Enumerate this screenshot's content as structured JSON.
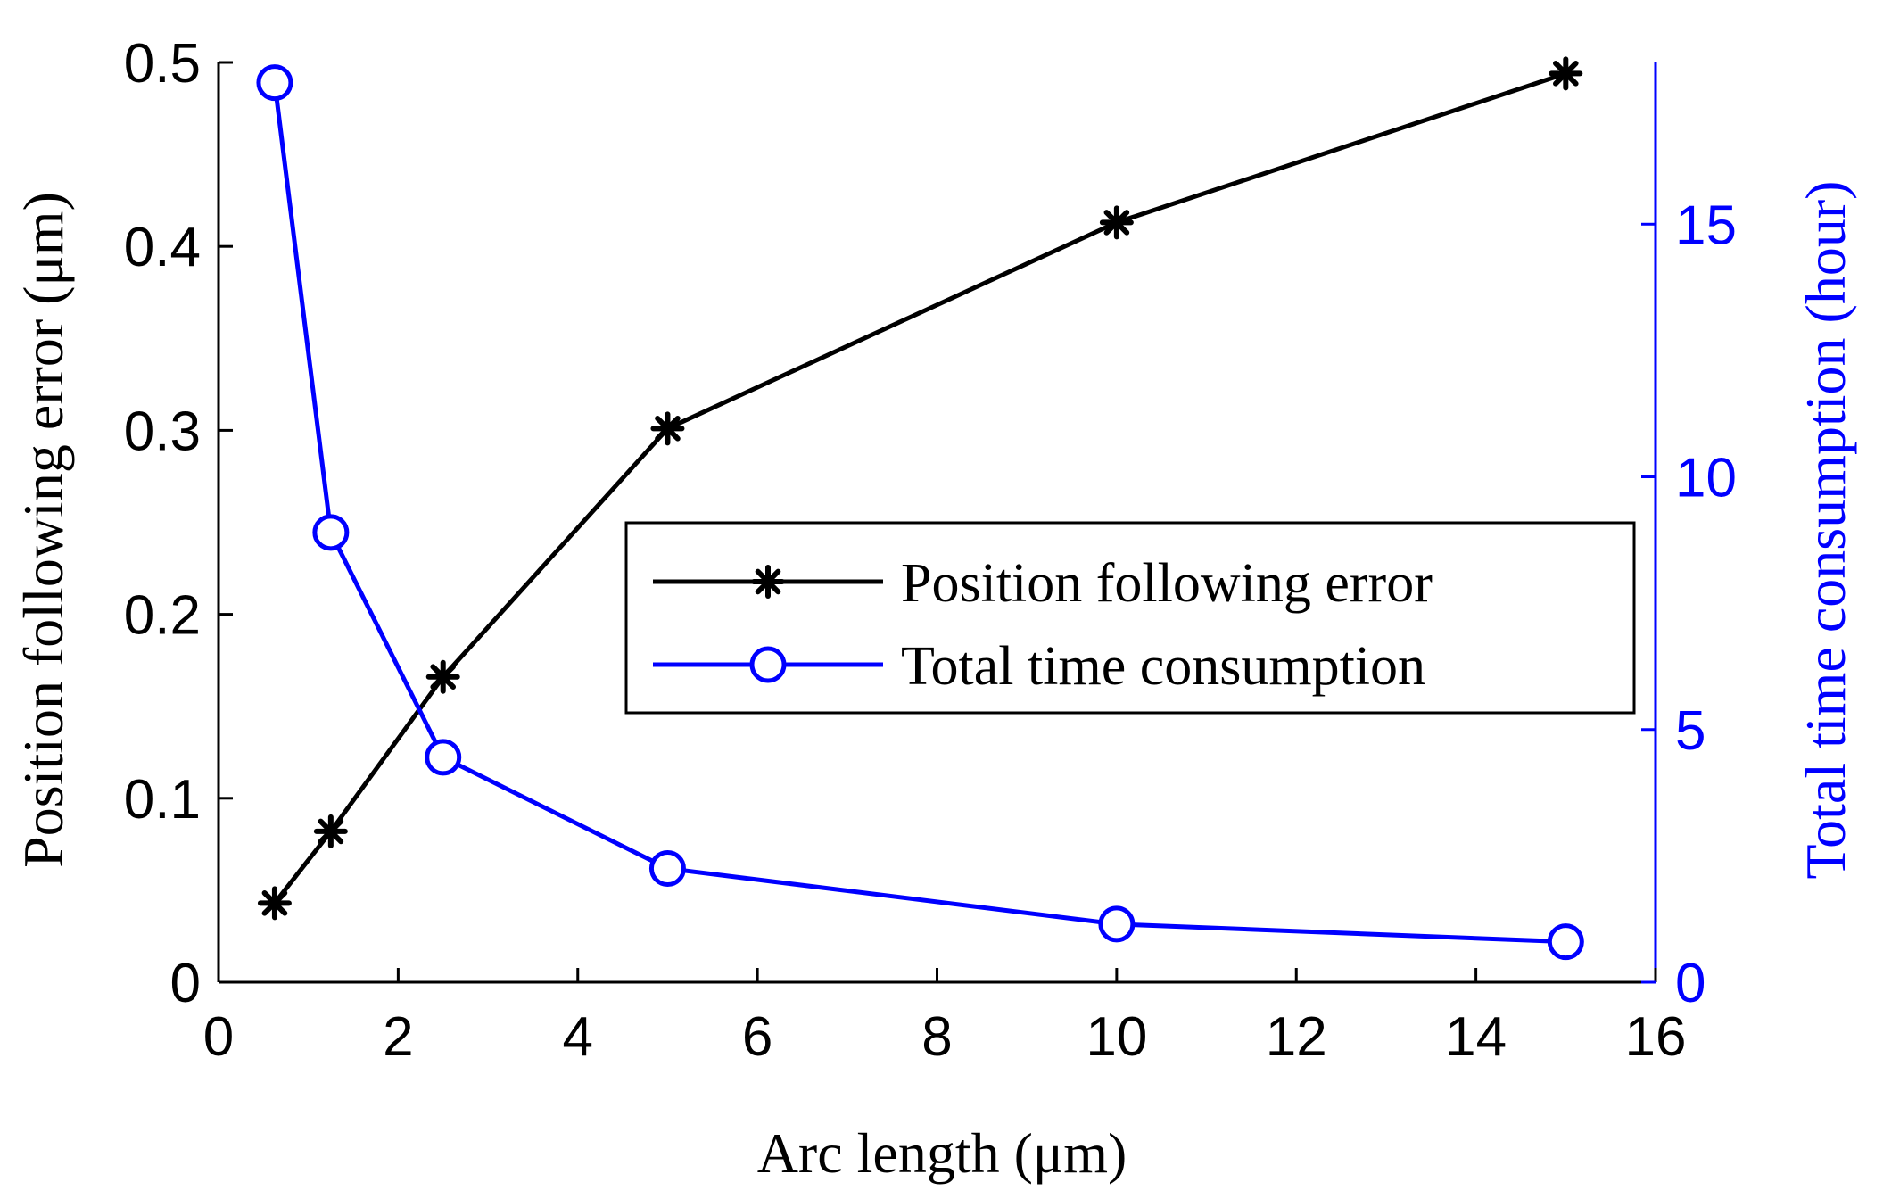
{
  "chart_data": {
    "type": "line",
    "xlabel": "Arc length (μm)",
    "ylabel_left": "Position following error (μm)",
    "ylabel_right": "Total time consumption (hour)",
    "xlim": [
      0,
      16
    ],
    "ylim_left": [
      0,
      0.5
    ],
    "ylim_right": [
      0,
      18.2
    ],
    "x_ticks": [
      "0",
      "2",
      "4",
      "6",
      "8",
      "10",
      "12",
      "14",
      "16"
    ],
    "y_left_ticks": [
      "0",
      "0.1",
      "0.2",
      "0.3",
      "0.4",
      "0.5"
    ],
    "y_right_ticks": [
      "0",
      "5",
      "10",
      "15"
    ],
    "x": [
      0.625,
      1.25,
      2.5,
      5,
      10,
      15
    ],
    "series": [
      {
        "name": "Position following error",
        "axis": "left",
        "marker": "asterisk",
        "color": "#000000",
        "values": [
          0.043,
          0.082,
          0.166,
          0.301,
          0.413,
          0.494
        ]
      },
      {
        "name": "Total time consumption",
        "axis": "right",
        "marker": "circle",
        "color": "#0000ff",
        "values": [
          17.8,
          8.9,
          4.45,
          2.25,
          1.15,
          0.8
        ]
      }
    ],
    "legend_position": "center-right",
    "grid": false
  }
}
